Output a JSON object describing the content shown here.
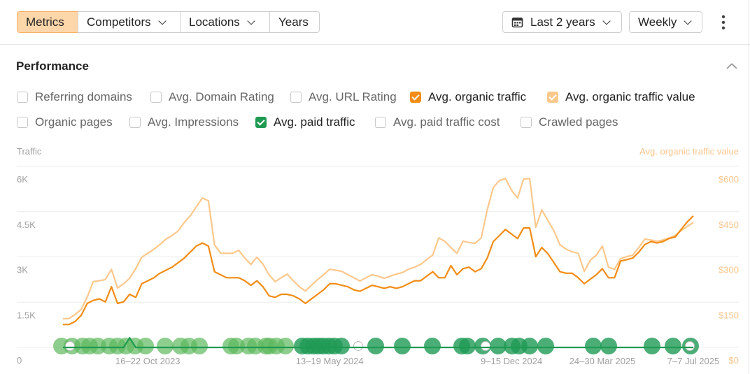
{
  "toolbar": {
    "tabs": [
      "Metrics",
      "Competitors",
      "Locations",
      "Years"
    ],
    "date_range": "Last 2 years",
    "period": "Weekly"
  },
  "panel": {
    "title": "Performance",
    "metrics": [
      "Referring domains",
      "Avg. Domain Rating",
      "Avg. URL Rating",
      "Organic pages",
      "Avg. Impressions",
      "Avg. paid traffic cost",
      "Crawled pages"
    ]
  },
  "chart_data": {
    "type": "line",
    "y_label": "Traffic",
    "y2_label": "Avg. organic traffic value",
    "categories": [
      null,
      null,
      null,
      null,
      null,
      null,
      null,
      null,
      null,
      null,
      null,
      null,
      null,
      null,
      "16–22 Oct 2023",
      null,
      null,
      null,
      null,
      null,
      null,
      null,
      null,
      null,
      null,
      null,
      null,
      null,
      null,
      null,
      null,
      null,
      null,
      null,
      null,
      null,
      null,
      null,
      null,
      null,
      null,
      null,
      null,
      null,
      "13–19 May 2024",
      null,
      null,
      null,
      null,
      null,
      null,
      null,
      null,
      null,
      null,
      null,
      null,
      null,
      null,
      null,
      null,
      null,
      null,
      null,
      null,
      null,
      null,
      null,
      null,
      null,
      null,
      null,
      null,
      null,
      "9–15 Dec 2024",
      null,
      null,
      null,
      null,
      null,
      null,
      null,
      null,
      null,
      null,
      null,
      null,
      null,
      null,
      "24–30 Mar 2025",
      null,
      null,
      null,
      null,
      null,
      null,
      null,
      null,
      null,
      null,
      null,
      null,
      null,
      null,
      "7–7 Jul 2025"
    ],
    "ylim": [
      0,
      6000
    ],
    "yticks": [
      0,
      {
        "value": 1500,
        "label": "1.5K"
      },
      {
        "value": 3000,
        "label": "3K"
      },
      {
        "value": 4500,
        "label": "4.5K"
      },
      {
        "value": 6000,
        "label": "6K"
      }
    ],
    "y2lim": [
      0,
      600
    ],
    "y2ticks": [
      {
        "value": 0,
        "label": "$0"
      },
      {
        "value": 150,
        "label": "$150"
      },
      {
        "value": 300,
        "label": "$300"
      },
      {
        "value": 450,
        "label": "$450"
      },
      {
        "value": 600,
        "label": "$600"
      }
    ],
    "grid": true,
    "series": [
      {
        "name": "Avg. organic traffic",
        "color": "#f28c14",
        "values": [
          760,
          760,
          860,
          1060,
          1460,
          1560,
          1610,
          1510,
          2010,
          1460,
          1510,
          1760,
          1660,
          2110,
          2210,
          2310,
          2460,
          2560,
          2660,
          2810,
          2960,
          3160,
          3360,
          3460,
          3360,
          2510,
          2410,
          2310,
          2310,
          2310,
          2210,
          2060,
          2210,
          2010,
          1710,
          1660,
          1760,
          1760,
          1710,
          1610,
          1460,
          1610,
          1760,
          1910,
          2110,
          2110,
          2060,
          2010,
          1910,
          1860,
          1960,
          2060,
          2010,
          1960,
          2010,
          1960,
          2010,
          2110,
          2210,
          2210,
          2360,
          2510,
          2310,
          2310,
          2710,
          2410,
          2610,
          2660,
          2510,
          2610,
          2960,
          3510,
          3710,
          3910,
          3760,
          3610,
          3960,
          3960,
          3010,
          3310,
          3110,
          2810,
          2510,
          2460,
          2460,
          2310,
          2110,
          2260,
          2410,
          2610,
          2310,
          2310,
          2860,
          2910,
          2960,
          3160,
          3410,
          3510,
          3460,
          3510,
          3610,
          3660,
          3910,
          4160,
          4360
        ]
      },
      {
        "name": "Avg. organic traffic value",
        "color": "#fcc88c",
        "axis": "y2",
        "values": [
          95,
          96,
          109,
          126,
          167,
          218,
          221,
          225,
          259,
          197,
          211,
          229,
          261,
          299,
          312,
          326,
          341,
          359,
          371,
          386,
          414,
          436,
          466,
          495,
          486,
          340,
          312,
          312,
          312,
          322,
          296,
          275,
          299,
          276,
          241,
          218,
          231,
          243,
          221,
          201,
          187,
          206,
          225,
          241,
          259,
          256,
          252,
          241,
          231,
          220,
          231,
          241,
          236,
          229,
          236,
          243,
          248,
          259,
          266,
          275,
          291,
          306,
          363,
          352,
          331,
          312,
          352,
          348,
          345,
          363,
          456,
          530,
          553,
          560,
          521,
          495,
          558,
          560,
          398,
          456,
          421,
          387,
          340,
          326,
          317,
          312,
          252,
          289,
          306,
          336,
          266,
          259,
          294,
          301,
          306,
          331,
          359,
          356,
          352,
          356,
          363,
          371,
          387,
          401,
          414
        ]
      },
      {
        "name": "Avg. paid traffic",
        "color": "#1e9a52",
        "values": [
          0,
          0,
          0,
          0,
          0,
          0,
          0,
          0,
          0,
          0,
          0,
          320,
          0,
          0,
          0,
          0,
          0,
          0,
          0,
          0,
          0,
          0,
          0,
          0,
          0,
          0,
          0,
          0,
          0,
          0,
          0,
          0,
          0,
          0,
          0,
          0,
          0,
          0,
          0,
          0,
          0,
          0,
          0,
          0,
          0,
          0,
          0,
          0,
          0,
          0,
          0,
          0,
          0,
          0,
          0,
          0,
          0,
          0,
          0,
          0,
          0,
          0,
          0,
          0,
          0,
          0,
          0,
          0,
          0,
          0,
          0,
          0,
          0,
          0,
          0,
          0,
          0,
          0,
          0,
          0,
          0,
          0,
          0,
          0,
          0,
          0,
          0,
          0,
          0,
          0,
          0,
          0,
          0,
          0,
          0,
          0,
          0,
          0,
          0,
          0,
          0,
          0,
          0,
          0,
          0
        ]
      }
    ]
  }
}
